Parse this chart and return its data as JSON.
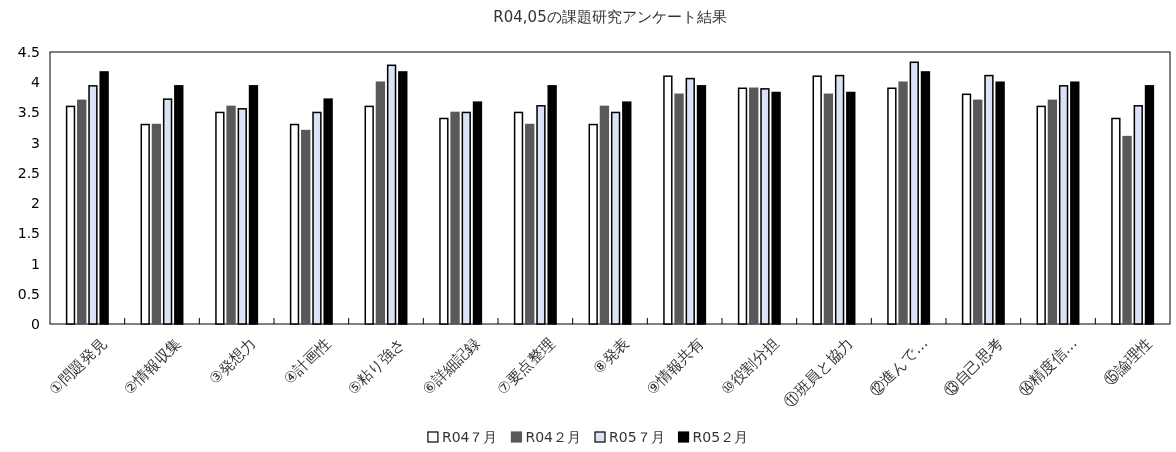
{
  "chart_data": {
    "type": "bar",
    "title": "R04,05の課題研究アンケート結果",
    "categories": [
      "①問題発見",
      "②情報収集",
      "③発想力",
      "④計画性",
      "⑤粘り強さ",
      "⑥詳細記録",
      "⑦要点整理",
      "⑧発表",
      "⑨情報共有",
      "⑩役割分担",
      "⑪班員と協力",
      "⑫進んで…",
      "⑬自己思考",
      "⑭精度信…",
      "⑮論理性"
    ],
    "series": [
      {
        "name": "R04７月",
        "color": "#ffffff",
        "values": [
          3.6,
          3.3,
          3.5,
          3.3,
          3.6,
          3.4,
          3.5,
          3.3,
          4.1,
          3.9,
          4.1,
          3.9,
          3.8,
          3.6,
          3.4
        ]
      },
      {
        "name": "R04２月",
        "color": "#595959",
        "values": [
          3.7,
          3.3,
          3.6,
          3.2,
          4.0,
          3.5,
          3.3,
          3.6,
          3.8,
          3.9,
          3.8,
          4.0,
          3.7,
          3.7,
          3.1
        ]
      },
      {
        "name": "R05７月",
        "color": "#dae3f3",
        "values": [
          3.94,
          3.72,
          3.56,
          3.5,
          4.28,
          3.5,
          3.61,
          3.5,
          4.06,
          3.89,
          4.11,
          4.33,
          4.11,
          3.94,
          3.61
        ]
      },
      {
        "name": "R05２月",
        "color": "#000000",
        "values": [
          4.17,
          3.94,
          3.94,
          3.72,
          4.17,
          3.67,
          3.94,
          3.67,
          3.94,
          3.83,
          3.83,
          4.17,
          4.0,
          4.0,
          3.94
        ]
      }
    ],
    "ylim": [
      0,
      4.5
    ],
    "yticks": [
      0,
      0.5,
      1,
      1.5,
      2,
      2.5,
      3,
      3.5,
      4,
      4.5
    ],
    "grid": false,
    "legend": "bottom"
  }
}
